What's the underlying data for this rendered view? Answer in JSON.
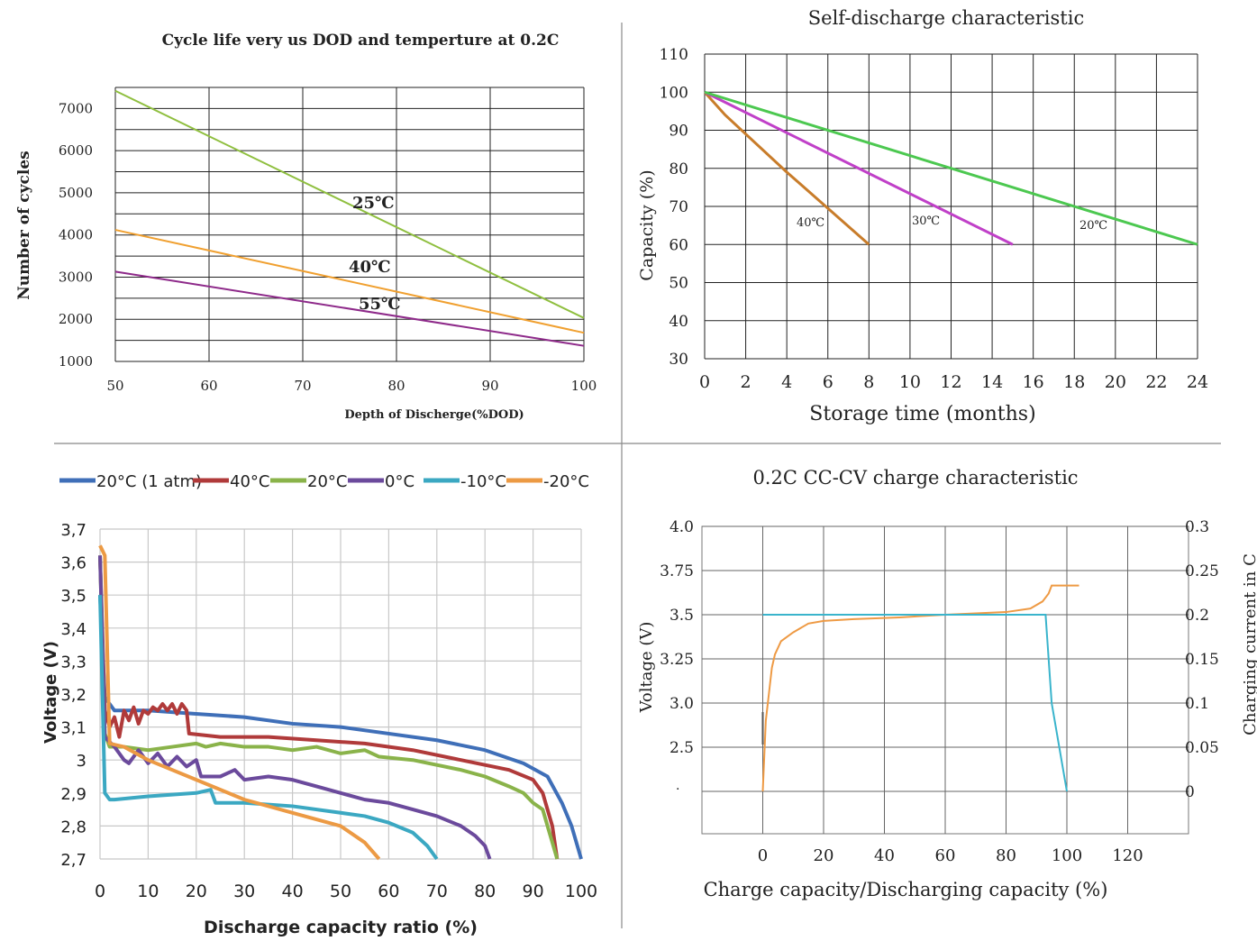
{
  "chart_data": [
    {
      "type": "line",
      "title": "Cycle life very us DOD and temperture  at 0.2C",
      "xlabel": "Depth  of  Discherge(%DOD)",
      "ylabel": "Number of cycles",
      "xlim": [
        50,
        100
      ],
      "ylim": [
        1000,
        7500
      ],
      "x_ticks": [
        "50",
        "60",
        "70",
        "80",
        "90",
        "100"
      ],
      "y_ticks": [
        "1000",
        "2000",
        "3000",
        "4000",
        "5000",
        "6000",
        "7000"
      ],
      "grid": true,
      "series": [
        {
          "name": "25℃",
          "color": "#8fbf3f",
          "points": [
            [
              50,
              7420
            ],
            [
              100,
              2030
            ]
          ]
        },
        {
          "name": "40℃",
          "color": "#f0a030",
          "points": [
            [
              50,
              4120
            ],
            [
              100,
              1680
            ]
          ]
        },
        {
          "name": "55℃",
          "color": "#8e2a8a",
          "points": [
            [
              50,
              3130
            ],
            [
              100,
              1370
            ]
          ]
        }
      ]
    },
    {
      "type": "line",
      "title": "Self-discharge characteristic",
      "xlabel": "Storage time (months)",
      "ylabel": "Capacity  (%)",
      "xlim": [
        0,
        24
      ],
      "ylim": [
        30,
        110
      ],
      "x_ticks": [
        "0",
        "2",
        "4",
        "6",
        "8",
        "10",
        "12",
        "14",
        "16",
        "18",
        "20",
        "22",
        "24"
      ],
      "y_ticks": [
        "30",
        "40",
        "50",
        "60",
        "70",
        "80",
        "90",
        "100",
        "110"
      ],
      "grid": true,
      "series": [
        {
          "name": "40℃",
          "color": "#c87c2a",
          "points": [
            [
              0,
              100
            ],
            [
              1,
              94
            ],
            [
              4,
              79
            ],
            [
              8,
              60
            ]
          ]
        },
        {
          "name": "30℃",
          "color": "#c040c8",
          "points": [
            [
              0,
              100
            ],
            [
              15,
              60
            ]
          ]
        },
        {
          "name": "20℃",
          "color": "#4cc850",
          "points": [
            [
              0,
              100
            ],
            [
              24,
              60
            ]
          ]
        }
      ]
    },
    {
      "type": "line",
      "xlabel": "Discharge capacity ratio (%)",
      "ylabel": "Voltage (V)",
      "xlim": [
        0,
        100
      ],
      "ylim": [
        2.7,
        3.7
      ],
      "x_ticks": [
        "0",
        "10",
        "20",
        "30",
        "40",
        "50",
        "60",
        "70",
        "80",
        "90",
        "100"
      ],
      "y_ticks": [
        "2,7",
        "2,8",
        "2,9",
        "3",
        "3,1",
        "3,2",
        "3,3",
        "3,4",
        "3,5",
        "3,6",
        "3,7"
      ],
      "grid": true,
      "legend": "top",
      "series": [
        {
          "name": "20°C (1 atm)",
          "color": "#3f6fb8",
          "points": [
            [
              0,
              3.5
            ],
            [
              1,
              3.19
            ],
            [
              3,
              3.15
            ],
            [
              10,
              3.15
            ],
            [
              20,
              3.14
            ],
            [
              30,
              3.13
            ],
            [
              40,
              3.11
            ],
            [
              50,
              3.1
            ],
            [
              60,
              3.08
            ],
            [
              70,
              3.06
            ],
            [
              80,
              3.03
            ],
            [
              88,
              2.99
            ],
            [
              93,
              2.95
            ],
            [
              96,
              2.87
            ],
            [
              98,
              2.8
            ],
            [
              100,
              2.7
            ]
          ]
        },
        {
          "name": "40°C",
          "color": "#b03a3a",
          "points": [
            [
              0,
              3.62
            ],
            [
              1,
              3.15
            ],
            [
              2,
              3.1
            ],
            [
              3,
              3.13
            ],
            [
              4,
              3.07
            ],
            [
              5,
              3.15
            ],
            [
              6,
              3.12
            ],
            [
              7,
              3.16
            ],
            [
              8,
              3.11
            ],
            [
              9,
              3.15
            ],
            [
              10,
              3.14
            ],
            [
              11,
              3.16
            ],
            [
              12,
              3.15
            ],
            [
              13,
              3.17
            ],
            [
              14,
              3.15
            ],
            [
              15,
              3.17
            ],
            [
              16,
              3.14
            ],
            [
              17,
              3.17
            ],
            [
              18,
              3.15
            ],
            [
              18.5,
              3.08
            ],
            [
              25,
              3.07
            ],
            [
              35,
              3.07
            ],
            [
              45,
              3.06
            ],
            [
              55,
              3.05
            ],
            [
              65,
              3.03
            ],
            [
              75,
              3.0
            ],
            [
              85,
              2.97
            ],
            [
              90,
              2.94
            ],
            [
              92,
              2.9
            ],
            [
              94,
              2.8
            ],
            [
              95,
              2.7
            ]
          ]
        },
        {
          "name": "20°C",
          "color": "#8ab34a",
          "points": [
            [
              0,
              3.62
            ],
            [
              1,
              3.08
            ],
            [
              2,
              3.04
            ],
            [
              5,
              3.04
            ],
            [
              10,
              3.03
            ],
            [
              15,
              3.04
            ],
            [
              20,
              3.05
            ],
            [
              22,
              3.04
            ],
            [
              25,
              3.05
            ],
            [
              30,
              3.04
            ],
            [
              35,
              3.04
            ],
            [
              40,
              3.03
            ],
            [
              45,
              3.04
            ],
            [
              50,
              3.02
            ],
            [
              55,
              3.03
            ],
            [
              58,
              3.01
            ],
            [
              65,
              3.0
            ],
            [
              75,
              2.97
            ],
            [
              80,
              2.95
            ],
            [
              85,
              2.92
            ],
            [
              88,
              2.9
            ],
            [
              90,
              2.87
            ],
            [
              92,
              2.85
            ],
            [
              93,
              2.8
            ],
            [
              94,
              2.75
            ],
            [
              95,
              2.7
            ]
          ]
        },
        {
          "name": "0°C",
          "color": "#6b4a9c",
          "points": [
            [
              0,
              3.62
            ],
            [
              1,
              3.07
            ],
            [
              3,
              3.04
            ],
            [
              5,
              3.0
            ],
            [
              6,
              2.99
            ],
            [
              8,
              3.03
            ],
            [
              10,
              2.99
            ],
            [
              12,
              3.02
            ],
            [
              14,
              2.98
            ],
            [
              16,
              3.01
            ],
            [
              18,
              2.98
            ],
            [
              20,
              3.0
            ],
            [
              21,
              2.95
            ],
            [
              25,
              2.95
            ],
            [
              28,
              2.97
            ],
            [
              30,
              2.94
            ],
            [
              35,
              2.95
            ],
            [
              40,
              2.94
            ],
            [
              45,
              2.92
            ],
            [
              50,
              2.9
            ],
            [
              55,
              2.88
            ],
            [
              60,
              2.87
            ],
            [
              65,
              2.85
            ],
            [
              70,
              2.83
            ],
            [
              75,
              2.8
            ],
            [
              78,
              2.77
            ],
            [
              80,
              2.74
            ],
            [
              81,
              2.7
            ]
          ]
        },
        {
          "name": "-10°C",
          "color": "#3ba8c2",
          "points": [
            [
              0,
              3.5
            ],
            [
              1,
              2.9
            ],
            [
              2,
              2.88
            ],
            [
              3,
              2.88
            ],
            [
              10,
              2.89
            ],
            [
              20,
              2.9
            ],
            [
              23,
              2.91
            ],
            [
              24,
              2.87
            ],
            [
              30,
              2.87
            ],
            [
              40,
              2.86
            ],
            [
              50,
              2.84
            ],
            [
              55,
              2.83
            ],
            [
              60,
              2.81
            ],
            [
              65,
              2.78
            ],
            [
              68,
              2.74
            ],
            [
              70,
              2.7
            ]
          ]
        },
        {
          "name": "-20°C",
          "color": "#ec9a44",
          "points": [
            [
              0,
              3.65
            ],
            [
              1,
              3.62
            ],
            [
              2,
              3.05
            ],
            [
              5,
              3.04
            ],
            [
              10,
              3.0
            ],
            [
              20,
              2.94
            ],
            [
              30,
              2.88
            ],
            [
              40,
              2.84
            ],
            [
              50,
              2.8
            ],
            [
              55,
              2.75
            ],
            [
              58,
              2.7
            ]
          ]
        }
      ]
    },
    {
      "type": "line",
      "title": "0.2C   CC-CV charge characteristic",
      "xlabel": "Charge capacity/Discharging capacity (%)",
      "ylabel": "Voltage (V)",
      "y2label": "Charging current in C",
      "xlim": [
        -20,
        140
      ],
      "x_ticks": [
        "0",
        "20",
        "40",
        "60",
        "80",
        "100",
        "120"
      ],
      "y_ticks": [
        "4.0",
        "3.75",
        "3.5",
        "3.25",
        "3.0",
        "2.5"
      ],
      "y2_ticks": [
        "0.3",
        "0.25",
        "0.2",
        "0.15",
        "0.1",
        "0.05",
        "0"
      ],
      "grid": true,
      "series": [
        {
          "name": "Voltage",
          "color": "#ee9a44",
          "points": [
            [
              0,
              0
            ],
            [
              0.5,
              0.04
            ],
            [
              1,
              0.08
            ],
            [
              2,
              0.11
            ],
            [
              3,
              0.14
            ],
            [
              4,
              0.155
            ],
            [
              6,
              0.17
            ],
            [
              10,
              0.18
            ],
            [
              15,
              0.19
            ],
            [
              20,
              0.193
            ],
            [
              30,
              0.195
            ],
            [
              45,
              0.197
            ],
            [
              60,
              0.2
            ],
            [
              80,
              0.203
            ],
            [
              88,
              0.207
            ],
            [
              92,
              0.215
            ],
            [
              94,
              0.224
            ],
            [
              95,
              0.233
            ],
            [
              104,
              0.233
            ]
          ]
        },
        {
          "name": "Charging current",
          "color": "#3ab4cc",
          "points": [
            [
              0,
              0.2
            ],
            [
              93,
              0.2
            ],
            [
              94,
              0.15
            ],
            [
              95,
              0.1
            ],
            [
              97,
              0.06
            ],
            [
              99,
              0.02
            ],
            [
              100,
              0.0
            ]
          ]
        }
      ]
    }
  ],
  "annotations": {
    "c1_25": "25℃",
    "c1_40": "40℃",
    "c1_55": "55℃",
    "c2_40": "40℃",
    "c2_30": "30℃",
    "c2_20": "20℃",
    "c4_dot": "·"
  }
}
